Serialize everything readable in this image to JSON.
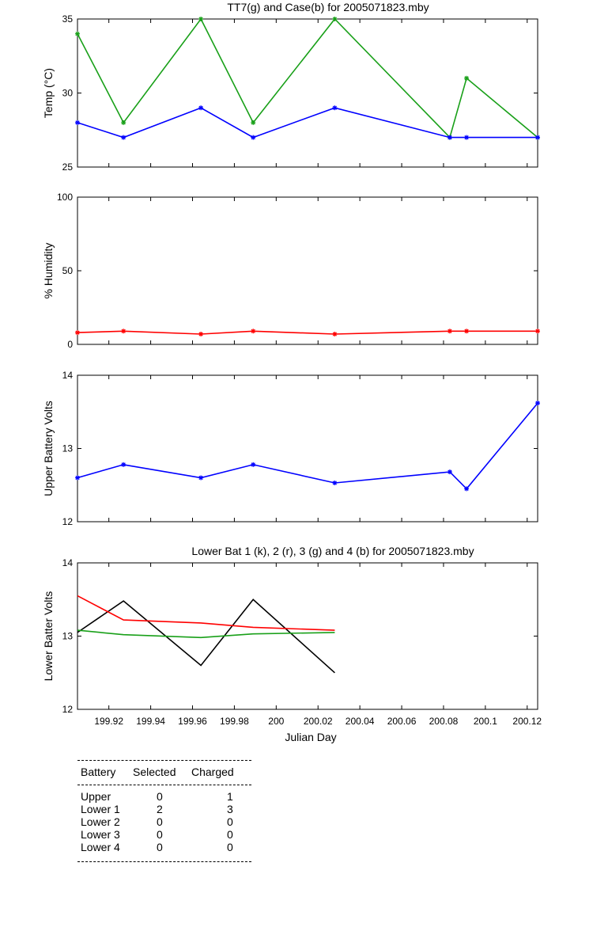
{
  "charts": [
    {
      "type": "line",
      "title": "TT7(g) and Case(b) for 2005071823.mby",
      "xlabel": "",
      "ylabel": "Temp  (°C)",
      "xlim": [
        199.905,
        200.125
      ],
      "ylim": [
        25,
        35
      ],
      "yticks": [
        "25",
        "30",
        "35"
      ],
      "show_xticklabels": false,
      "series": [
        {
          "color": "#19a019",
          "marker": "*",
          "x": [
            199.905,
            199.927,
            199.964,
            199.989,
            200.028,
            200.083,
            200.091,
            200.125
          ],
          "values": [
            34,
            28,
            35,
            28,
            35,
            27,
            31,
            27
          ]
        },
        {
          "color": "#0000ff",
          "marker": "*",
          "x": [
            199.905,
            199.927,
            199.964,
            199.989,
            200.028,
            200.083,
            200.091,
            200.125
          ],
          "values": [
            28,
            27,
            29,
            27,
            29,
            27,
            27,
            27
          ]
        }
      ]
    },
    {
      "type": "line",
      "title": "",
      "xlabel": "",
      "ylabel": "% Humidity",
      "xlim": [
        199.905,
        200.125
      ],
      "ylim": [
        0,
        100
      ],
      "yticks": [
        "0",
        "50",
        "100"
      ],
      "show_xticklabels": false,
      "series": [
        {
          "color": "#ff0000",
          "marker": "*",
          "x": [
            199.905,
            199.927,
            199.964,
            199.989,
            200.028,
            200.083,
            200.091,
            200.125
          ],
          "values": [
            8,
            9,
            7,
            9,
            7,
            9,
            9,
            9
          ]
        }
      ]
    },
    {
      "type": "line",
      "title": "",
      "xlabel": "",
      "ylabel": "Upper Battery Volts",
      "xlim": [
        199.905,
        200.125
      ],
      "ylim": [
        12,
        14
      ],
      "yticks": [
        "12",
        "13",
        "14"
      ],
      "show_xticklabels": false,
      "series": [
        {
          "color": "#0000ff",
          "marker": "*",
          "x": [
            199.905,
            199.927,
            199.964,
            199.989,
            200.028,
            200.083,
            200.091,
            200.125
          ],
          "values": [
            12.6,
            12.78,
            12.6,
            12.78,
            12.53,
            12.68,
            12.45,
            13.62
          ]
        }
      ]
    },
    {
      "type": "line",
      "title": "Lower Bat 1 (k), 2 (r), 3 (g) and 4 (b) for 2005071823.mby",
      "xlabel": "Julian Day",
      "ylabel": "Lower Batter Volts",
      "xlim": [
        199.905,
        200.125
      ],
      "ylim": [
        12,
        14
      ],
      "yticks": [
        "12",
        "13",
        "14"
      ],
      "show_xticklabels": true,
      "xticks": [
        "199.92",
        "199.94",
        "199.96",
        "199.98",
        "200",
        "200.02",
        "200.04",
        "200.06",
        "200.08",
        "200.1",
        "200.12"
      ],
      "series": [
        {
          "color": "#000000",
          "marker": "",
          "x": [
            199.905,
            199.927,
            199.964,
            199.989,
            200.028
          ],
          "values": [
            13.05,
            13.48,
            12.6,
            13.5,
            12.5
          ]
        },
        {
          "color": "#ff0000",
          "marker": "",
          "x": [
            199.905,
            199.927,
            199.964,
            199.989,
            200.028
          ],
          "values": [
            13.55,
            13.22,
            13.18,
            13.12,
            13.08
          ]
        },
        {
          "color": "#19a019",
          "marker": "",
          "x": [
            199.905,
            199.927,
            199.964,
            199.989,
            200.028
          ],
          "values": [
            13.08,
            13.02,
            12.98,
            13.03,
            13.05
          ]
        }
      ]
    }
  ],
  "table": {
    "headers": [
      "Battery",
      "Selected",
      "Charged"
    ],
    "rows": [
      [
        "Upper",
        "0",
        "1"
      ],
      [
        "Lower 1",
        "2",
        "3"
      ],
      [
        "Lower 2",
        "0",
        "0"
      ],
      [
        "Lower 3",
        "0",
        "0"
      ],
      [
        "Lower 4",
        "0",
        "0"
      ]
    ]
  }
}
